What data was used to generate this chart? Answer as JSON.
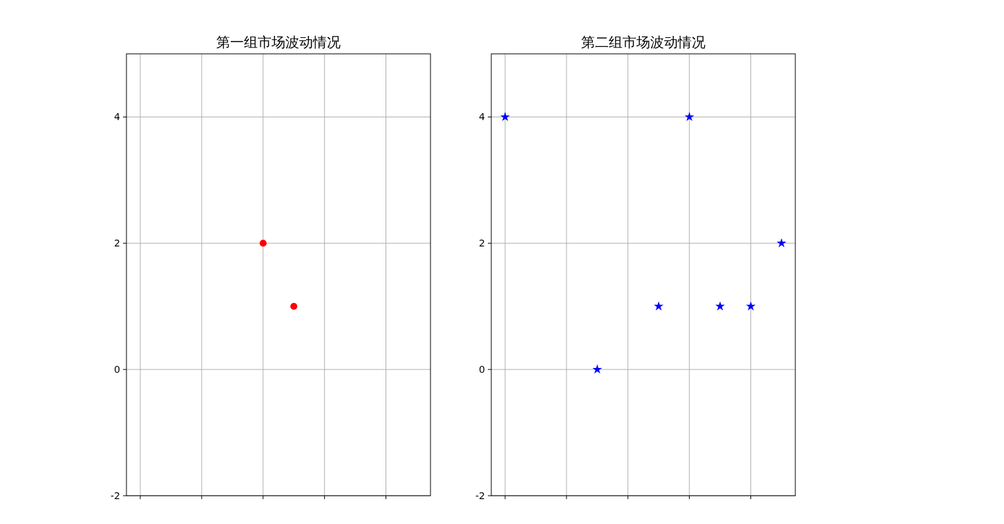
{
  "chart_data": [
    {
      "type": "scatter",
      "title": "第一组市场波动情况",
      "categories": [
        null,
        null,
        null,
        null,
        null,
        null,
        null,
        null,
        null,
        null
      ],
      "series": [
        {
          "color": "#ff0000",
          "values": [
            null,
            null,
            null,
            null,
            2,
            1,
            null,
            null,
            null,
            null
          ]
        }
      ],
      "marker": "circle",
      "ylim": [
        -2,
        5
      ],
      "yticks": [
        -2,
        0,
        2,
        4
      ],
      "tick_labels": "y",
      "grid": true
    },
    {
      "type": "scatter",
      "title": "第二组市场波动情况",
      "categories": [
        null,
        null,
        null,
        null,
        null,
        null,
        null,
        null,
        null,
        null
      ],
      "series": [
        {
          "color": "#0000ff",
          "values": [
            4,
            null,
            null,
            0,
            null,
            1,
            4,
            1,
            1,
            2
          ]
        }
      ],
      "marker": "star",
      "ylim": [
        -2,
        5
      ],
      "yticks": [
        -2,
        0,
        2,
        4
      ],
      "tick_labels": "y",
      "grid": true
    }
  ]
}
